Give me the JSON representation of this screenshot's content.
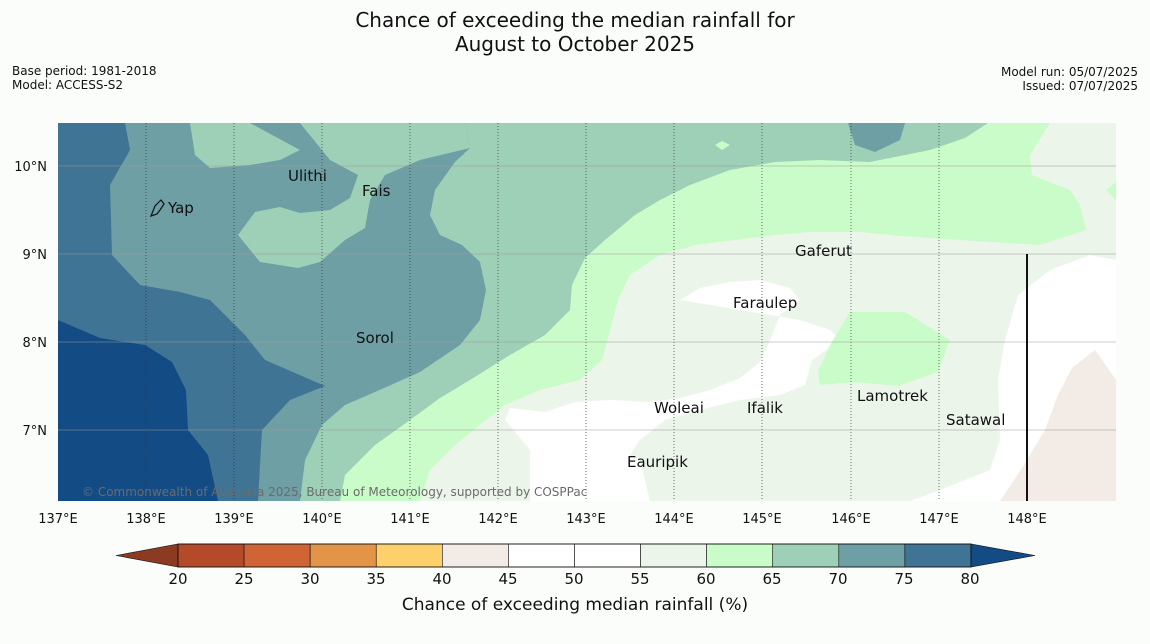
{
  "title_line1": "Chance of exceeding the median rainfall for",
  "title_line2": "August to October 2025",
  "base_period": "Base period: 1981-2018",
  "model": "Model: ACCESS-S2",
  "model_run": "Model run: 05/07/2025",
  "issued": "Issued: 07/07/2025",
  "copyright": "© Commonwealth of Australia 2025, Bureau of Meteorology, supported by COSPPac",
  "lon_ticks": [
    "137°E",
    "138°E",
    "139°E",
    "140°E",
    "141°E",
    "142°E",
    "143°E",
    "144°E",
    "145°E",
    "146°E",
    "147°E",
    "148°E"
  ],
  "lat_ticks": [
    "10°N",
    "9°N",
    "8°N",
    "7°N"
  ],
  "places": {
    "yap": "Yap",
    "ulithi": "Ulithi",
    "fais": "Fais",
    "sorol": "Sorol",
    "gaferut": "Gaferut",
    "faraulep": "Faraulep",
    "woleai": "Woleai",
    "ifalik": "Ifalik",
    "lamotrek": "Lamotrek",
    "satawal": "Satawal",
    "eauripik": "Eauripik"
  },
  "colorbar": {
    "label": "Chance of exceeding median rainfall (%)",
    "ticks": [
      "20",
      "25",
      "30",
      "35",
      "40",
      "45",
      "50",
      "55",
      "60",
      "65",
      "70",
      "75",
      "80"
    ],
    "colors": {
      "below20": "#8c3a22",
      "c20_25": "#b54a2a",
      "c25_30": "#d06435",
      "c30_35": "#e39447",
      "c35_40": "#fdd06b",
      "c40_45": "#f2ebe6",
      "c45_50": "#ffffff",
      "c50_55": "#ffffff",
      "c55_60": "#ebf5ea",
      "c60_65": "#cafcca",
      "c65_70": "#9dd0b7",
      "c70_75": "#6d9fa4",
      "c75_80": "#3f7494",
      "above80": "#134c85"
    }
  }
}
